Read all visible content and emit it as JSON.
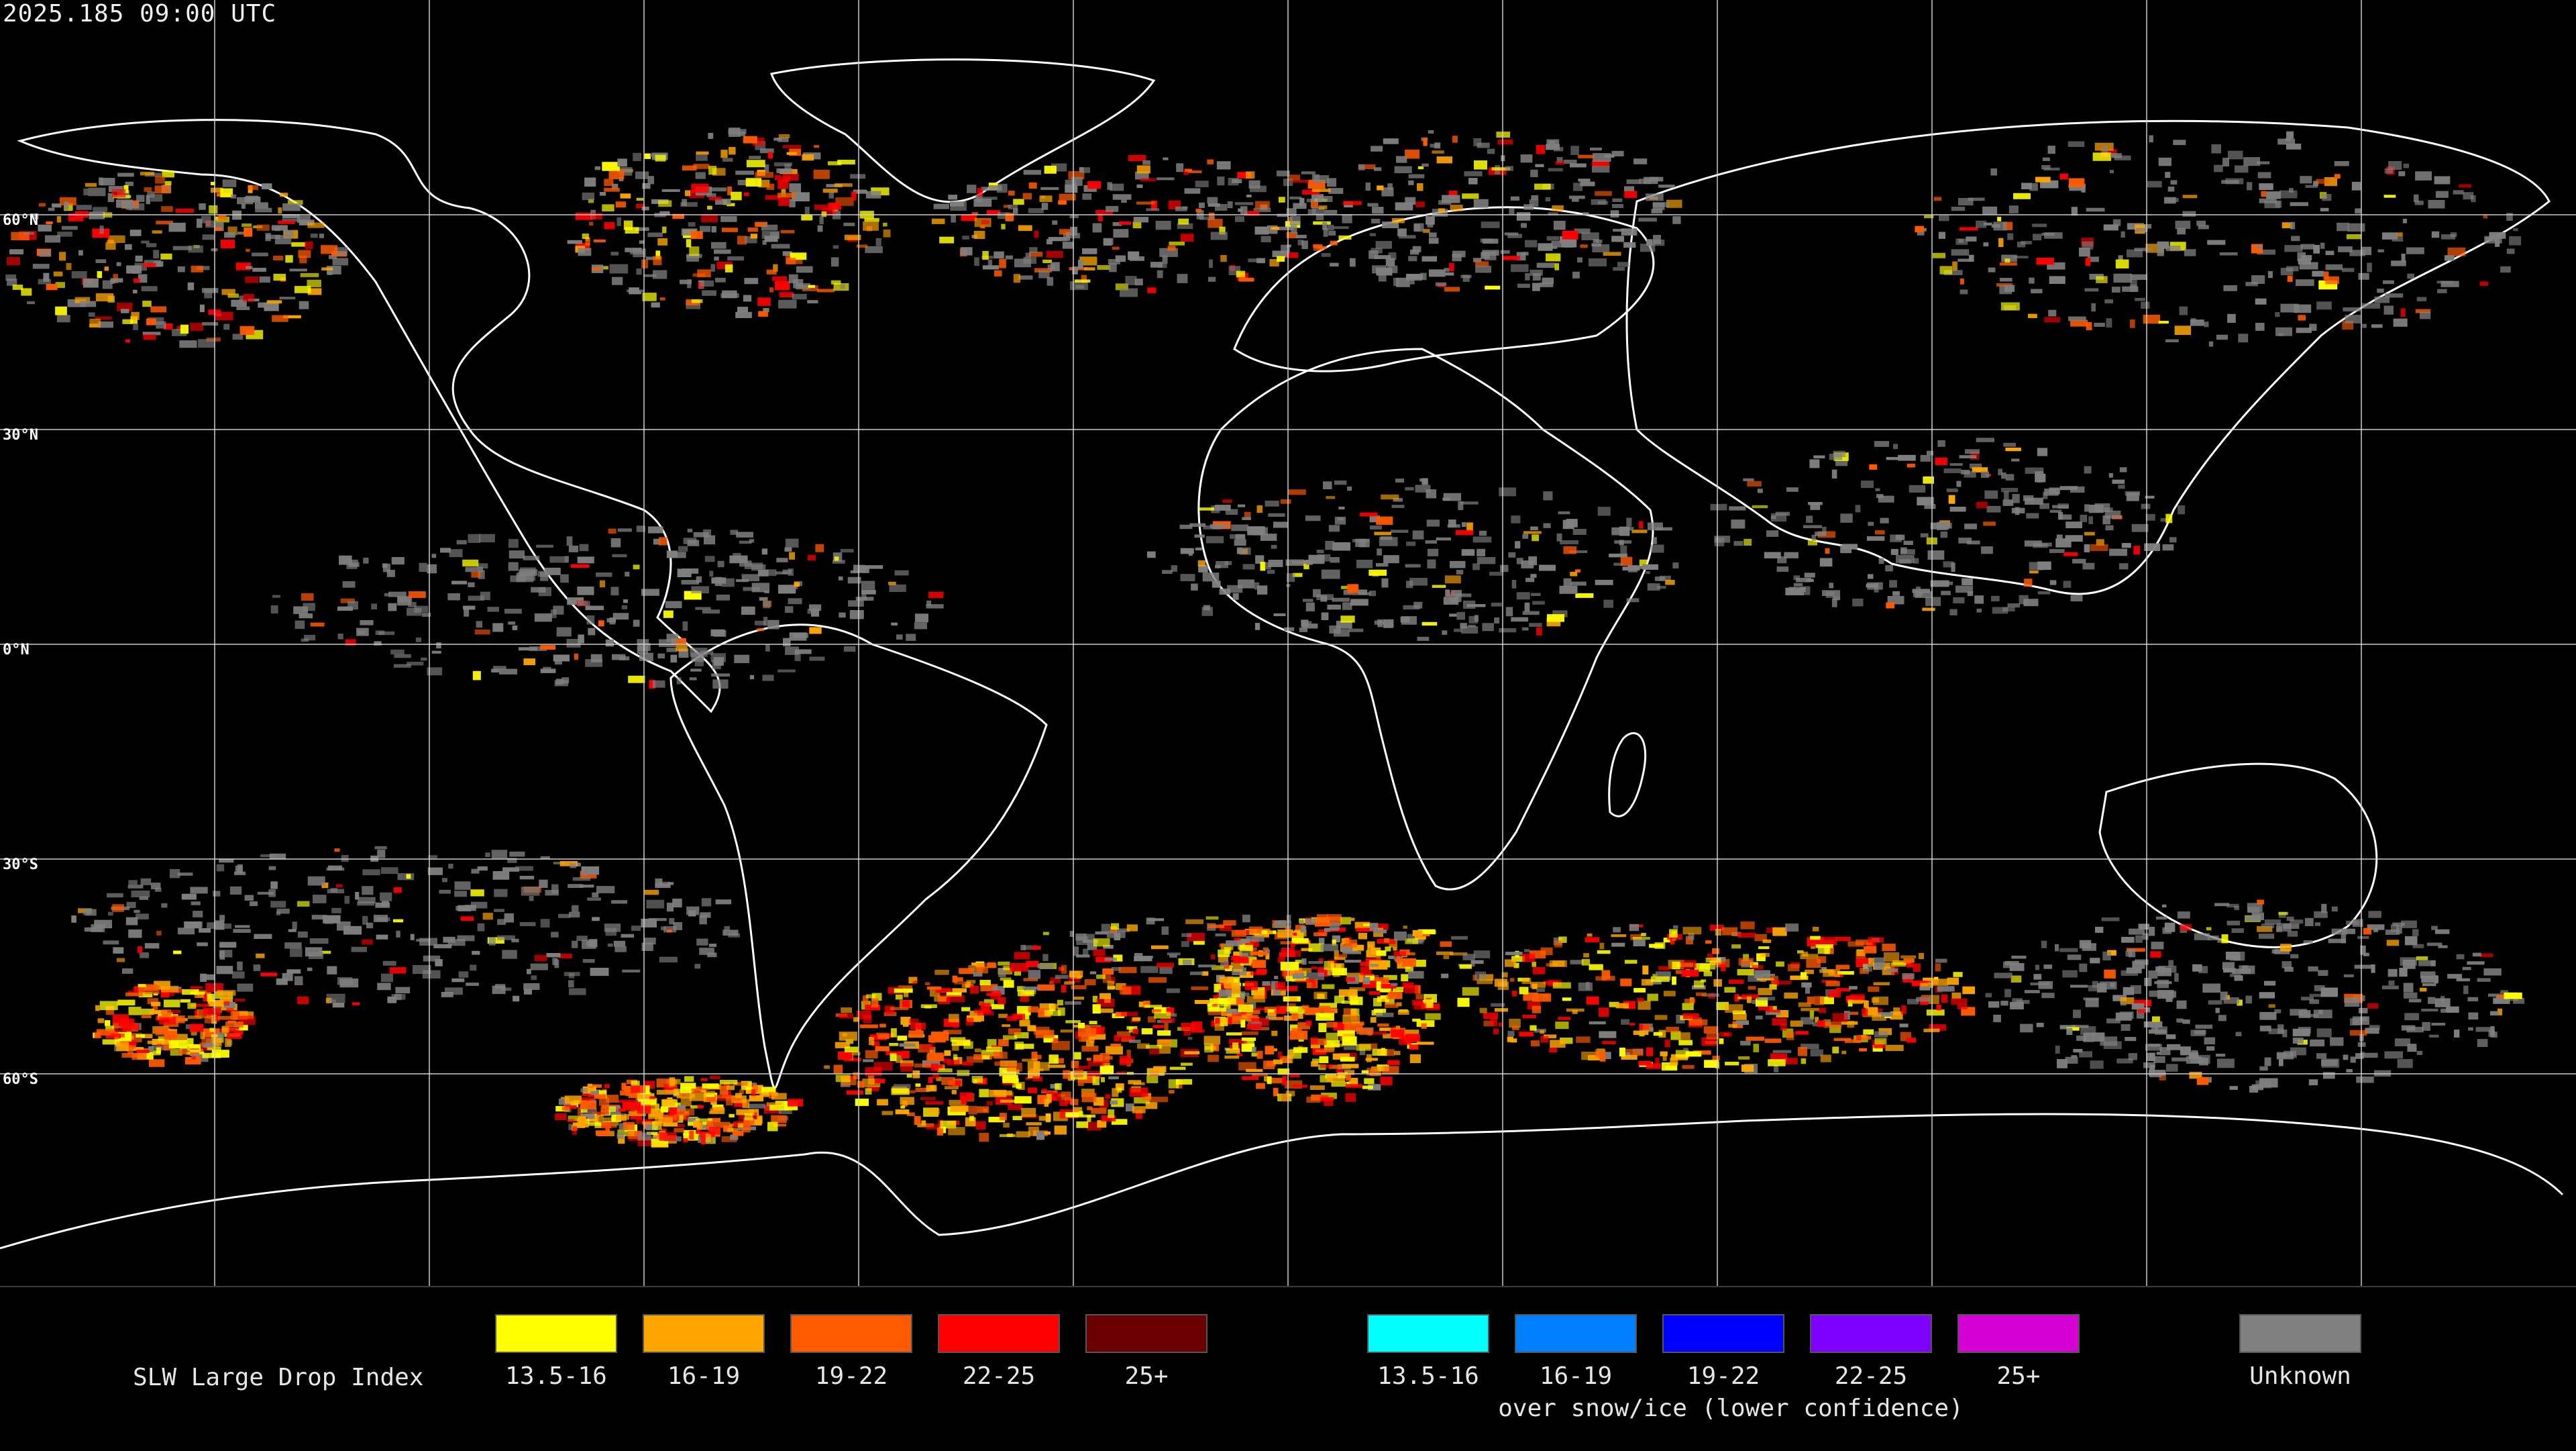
{
  "timestamp": "2025.185 09:00 UTC",
  "latitude_labels": [
    "60°N",
    "30°N",
    "0°N",
    "30°S",
    "60°S"
  ],
  "legend": {
    "title": "SLW Large Drop Index",
    "normal": [
      {
        "label": "13.5-16",
        "color": "#ffff00"
      },
      {
        "label": "16-19",
        "color": "#ffa500"
      },
      {
        "label": "19-22",
        "color": "#ff5a00"
      },
      {
        "label": "22-25",
        "color": "#ff0000"
      },
      {
        "label": "25+",
        "color": "#6a0000"
      }
    ],
    "snow_ice": [
      {
        "label": "13.5-16",
        "color": "#00ffff"
      },
      {
        "label": "16-19",
        "color": "#0080ff"
      },
      {
        "label": "19-22",
        "color": "#0000ff"
      },
      {
        "label": "22-25",
        "color": "#8000ff"
      },
      {
        "label": "25+",
        "color": "#d400d4"
      }
    ],
    "snow_ice_subtitle": "over snow/ice (lower confidence)",
    "unknown": {
      "label": "Unknown",
      "color": "#808080"
    }
  }
}
